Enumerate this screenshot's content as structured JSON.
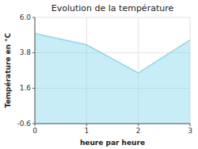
{
  "chart_data": {
    "type": "area",
    "title": "Evolution de la température",
    "x_label": "heure par heure",
    "y_label": "Température en °C",
    "x": [
      0,
      1,
      2,
      3
    ],
    "values": [
      5.0,
      4.3,
      2.55,
      4.6
    ],
    "xlim": [
      0,
      3
    ],
    "ylim": [
      -0.6,
      6.0
    ],
    "xticks": [
      0,
      1,
      2,
      3
    ],
    "yticks": [
      -0.6,
      1.6,
      3.8,
      {
        "value": 6.0,
        "label": "6.0"
      }
    ],
    "color": "#88d8ee",
    "grid": true
  }
}
